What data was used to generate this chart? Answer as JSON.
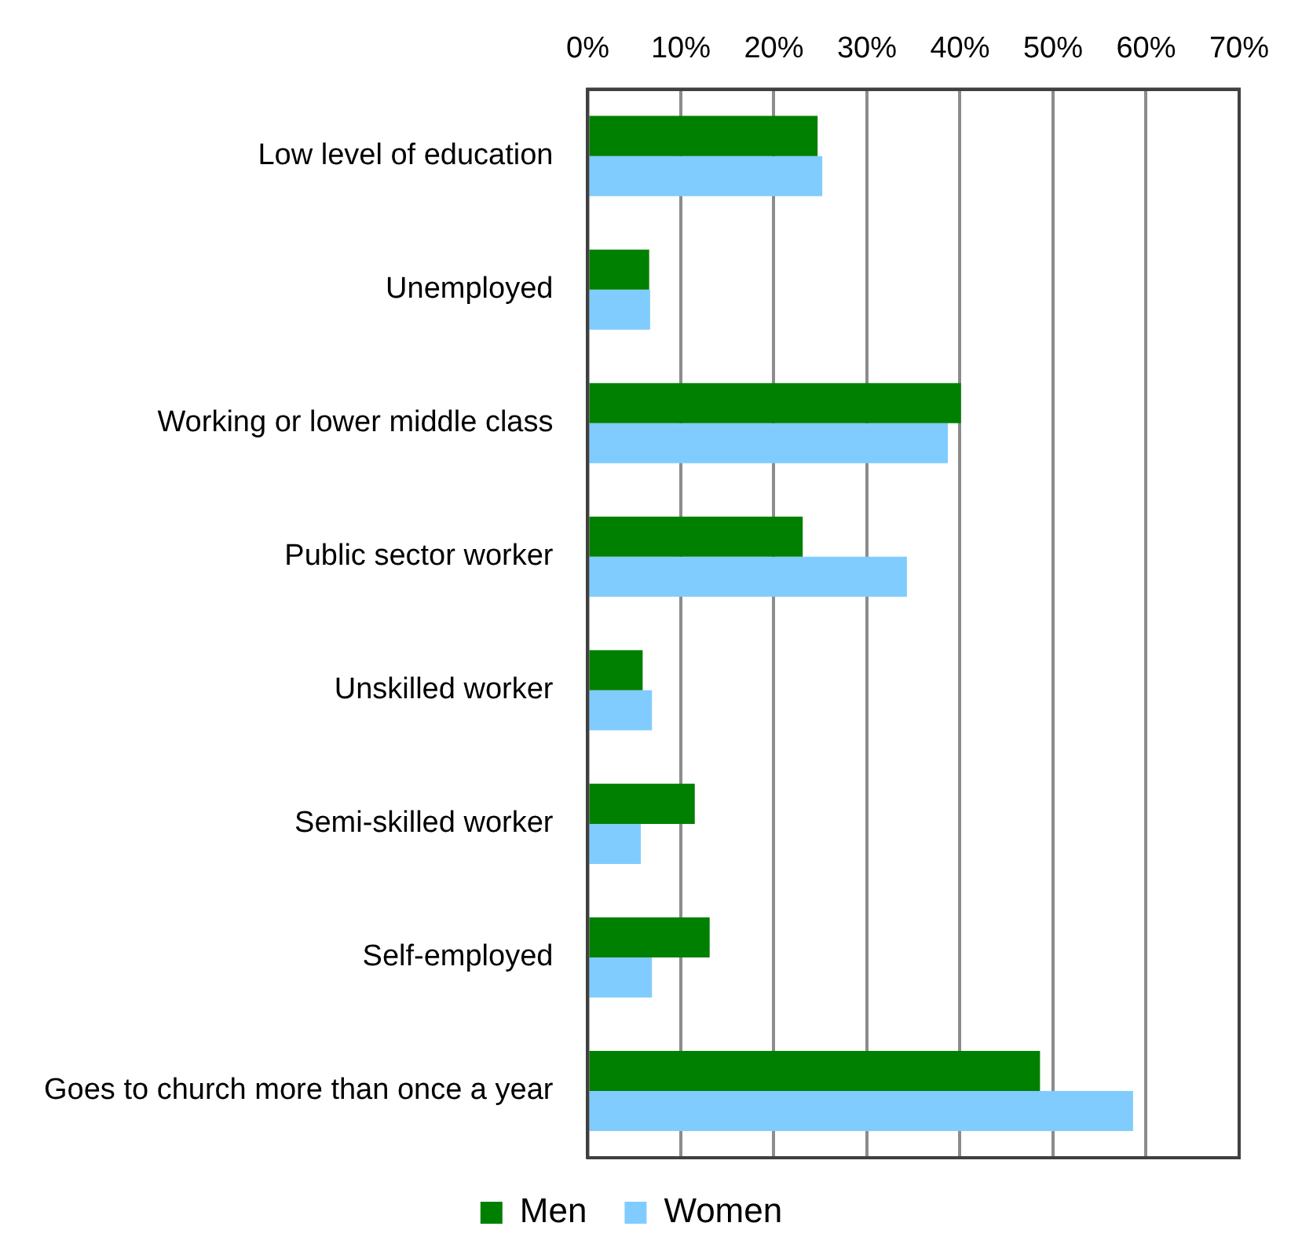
{
  "chart_data": {
    "type": "bar",
    "orientation": "horizontal",
    "categories": [
      "Low level of education",
      "Unemployed",
      "Working or lower middle class",
      "Public sector worker",
      "Unskilled worker",
      "Semi-skilled worker",
      "Self-employed",
      "Goes to church more than once a year"
    ],
    "series": [
      {
        "name": "Men",
        "color": "#008000",
        "values": [
          24.7,
          6.6,
          40.1,
          23.1,
          5.9,
          11.5,
          13.1,
          48.6
        ]
      },
      {
        "name": "Women",
        "color": "#80ccff",
        "values": [
          25.2,
          6.7,
          38.7,
          34.3,
          6.9,
          5.7,
          6.9,
          58.6
        ]
      }
    ],
    "xlim": [
      0,
      70
    ],
    "xticks": [
      {
        "value": 0,
        "label": "0%"
      },
      {
        "value": 10,
        "label": "10%"
      },
      {
        "value": 20,
        "label": "20%"
      },
      {
        "value": 30,
        "label": "30%"
      },
      {
        "value": 40,
        "label": "40%"
      },
      {
        "value": 50,
        "label": "50%"
      },
      {
        "value": 60,
        "label": "60%"
      },
      {
        "value": 70,
        "label": "70%"
      }
    ],
    "grid": "x",
    "legend": "bottom"
  }
}
